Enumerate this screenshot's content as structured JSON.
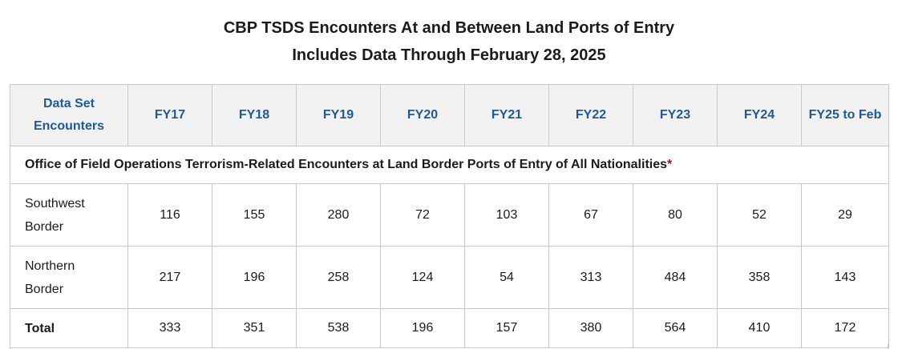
{
  "title": {
    "line1": "CBP TSDS Encounters At and Between Land Ports of Entry",
    "line2": "Includes Data Through February 28, 2025"
  },
  "table": {
    "headers": [
      "Data Set Encounters",
      "FY17",
      "FY18",
      "FY19",
      "FY20",
      "FY21",
      "FY22",
      "FY23",
      "FY24",
      "FY25 to Feb"
    ],
    "section_title": "Office of Field Operations Terrorism-Related Encounters at Land Border Ports of Entry of All Nationalities",
    "section_asterisk": "*",
    "rows": [
      {
        "label": "Southwest Border",
        "values": [
          "116",
          "155",
          "280",
          "72",
          "103",
          "67",
          "80",
          "52",
          "29"
        ]
      },
      {
        "label": "Northern Border",
        "values": [
          "217",
          "196",
          "258",
          "124",
          "54",
          "313",
          "484",
          "358",
          "143"
        ]
      },
      {
        "label": "Total",
        "values": [
          "333",
          "351",
          "538",
          "196",
          "157",
          "380",
          "564",
          "410",
          "172"
        ]
      }
    ]
  },
  "colors": {
    "header_text": "#1f5a96",
    "header_bg": "#f1f1f1",
    "asterisk": "#b50909",
    "border": "#c8c8c8"
  }
}
